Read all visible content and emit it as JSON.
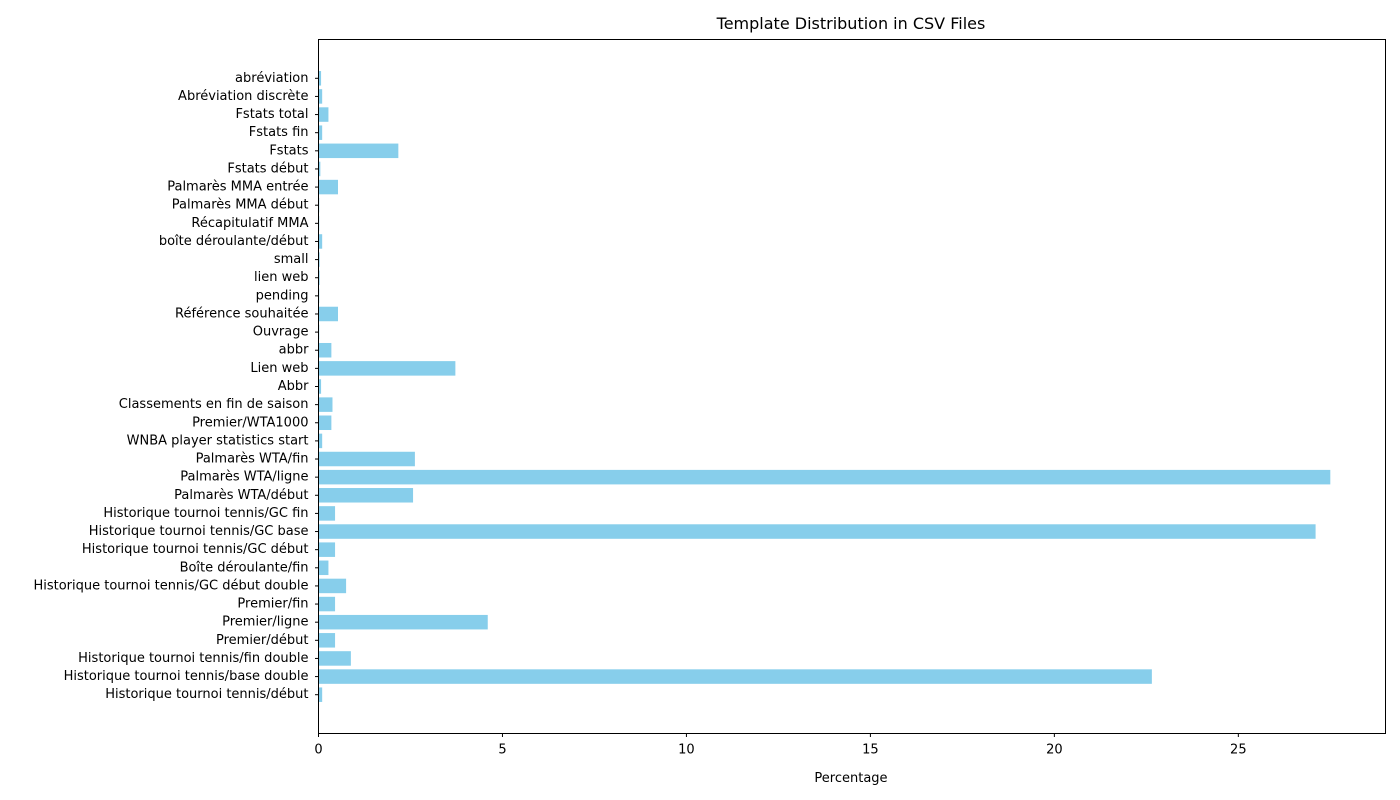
{
  "chart_data": {
    "type": "bar",
    "orientation": "horizontal",
    "title": "Template Distribution in CSV Files",
    "xlabel": "Percentage",
    "ylabel": "",
    "xlim": [
      0,
      29
    ],
    "xticks": [
      0,
      5,
      10,
      15,
      20,
      25
    ],
    "bar_color": "#87CEEB",
    "grid": false,
    "categories": [
      "Historique tournoi tennis/début",
      "Historique tournoi tennis/base double",
      "Historique tournoi tennis/fin double",
      "Premier/début",
      "Premier/ligne",
      "Premier/fin",
      "Historique tournoi tennis/GC début double",
      "Boîte déroulante/fin",
      "Historique tournoi tennis/GC début",
      "Historique tournoi tennis/GC base",
      "Historique tournoi tennis/GC fin",
      "Palmarès WTA/début",
      "Palmarès WTA/ligne",
      "Palmarès WTA/fin",
      "WNBA player statistics start",
      "Premier/WTA1000",
      "Classements en fin de saison",
      "Abbr",
      "Lien web",
      "abbr",
      "Ouvrage",
      "Référence souhaitée",
      "pending",
      "lien web",
      "small",
      "boîte déroulante/début",
      "Récapitulatif MMA",
      "Palmarès MMA début",
      "Palmarès MMA entrée",
      "Fstats début",
      "Fstats",
      "Fstats fin",
      "Fstats total",
      "Abréviation discrète",
      "abréviation"
    ],
    "values": [
      0.1,
      22.65,
      0.88,
      0.45,
      4.6,
      0.45,
      0.75,
      0.27,
      0.45,
      27.1,
      0.45,
      2.57,
      27.5,
      2.62,
      0.1,
      0.35,
      0.38,
      0.07,
      3.72,
      0.35,
      0.02,
      0.53,
      0.02,
      0.03,
      0.03,
      0.1,
      0.02,
      0.02,
      0.53,
      0.05,
      2.17,
      0.1,
      0.27,
      0.1,
      0.07
    ]
  }
}
